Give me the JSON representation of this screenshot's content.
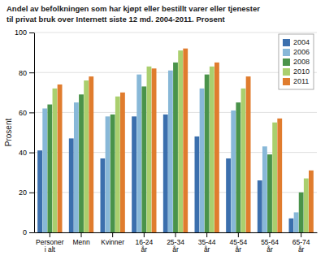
{
  "chart_data": {
    "type": "bar",
    "title": "Andel av befolkningen som har kjøpt eller bestillt varer eller tjenester",
    "subtitle": "til privat bruk over Internett siste 12 md. 2004-2011. Prosent",
    "ylabel": "Prosent",
    "categories": [
      "Personer\ni alt",
      "Menn",
      "Kvinner",
      "16-24\når",
      "25-34\når",
      "35-44\når",
      "45-54\når",
      "55-64\når",
      "65-74\når"
    ],
    "series": [
      {
        "name": "2004",
        "color": "#3b6fad",
        "values": [
          41,
          47,
          37,
          58,
          59,
          48,
          37,
          26,
          7
        ]
      },
      {
        "name": "2006",
        "color": "#88b8d8",
        "values": [
          62,
          65,
          58,
          79,
          81,
          72,
          61,
          43,
          10
        ]
      },
      {
        "name": "2008",
        "color": "#4a934a",
        "values": [
          64,
          69,
          59,
          73,
          85,
          79,
          65,
          39,
          20
        ]
      },
      {
        "name": "2010",
        "color": "#aacf6e",
        "values": [
          72,
          76,
          68,
          83,
          91,
          83,
          72,
          55,
          27
        ]
      },
      {
        "name": "2011",
        "color": "#e07c2e",
        "values": [
          74,
          78,
          70,
          82,
          92,
          85,
          78,
          57,
          31
        ]
      }
    ],
    "ylim": [
      0,
      100
    ],
    "yticks": [
      0,
      20,
      40,
      60,
      80,
      100
    ],
    "grid": true,
    "legend": "upper right"
  }
}
